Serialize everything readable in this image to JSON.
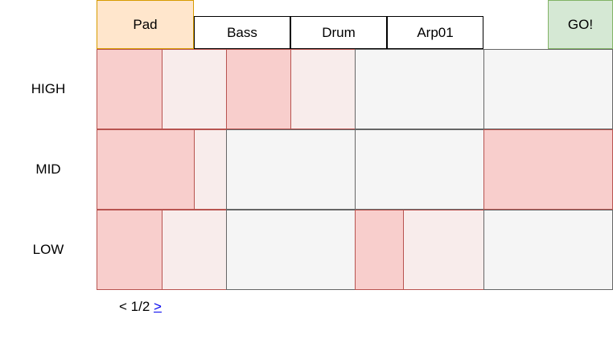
{
  "tabs": {
    "pad": "Pad",
    "bass": "Bass",
    "drum": "Drum",
    "arp": "Arp01",
    "go": "GO!"
  },
  "rows": {
    "high": "HIGH",
    "mid": "MID",
    "low": "LOW"
  },
  "pager": {
    "prev": "<",
    "page": "1/2",
    "next": ">"
  },
  "colors": {
    "active_tab": "#ffe6cc",
    "go": "#d5e8d4",
    "cell_strong": "#f8cecc",
    "cell_light": "#f8eceb",
    "cell_empty": "#f5f5f5"
  }
}
